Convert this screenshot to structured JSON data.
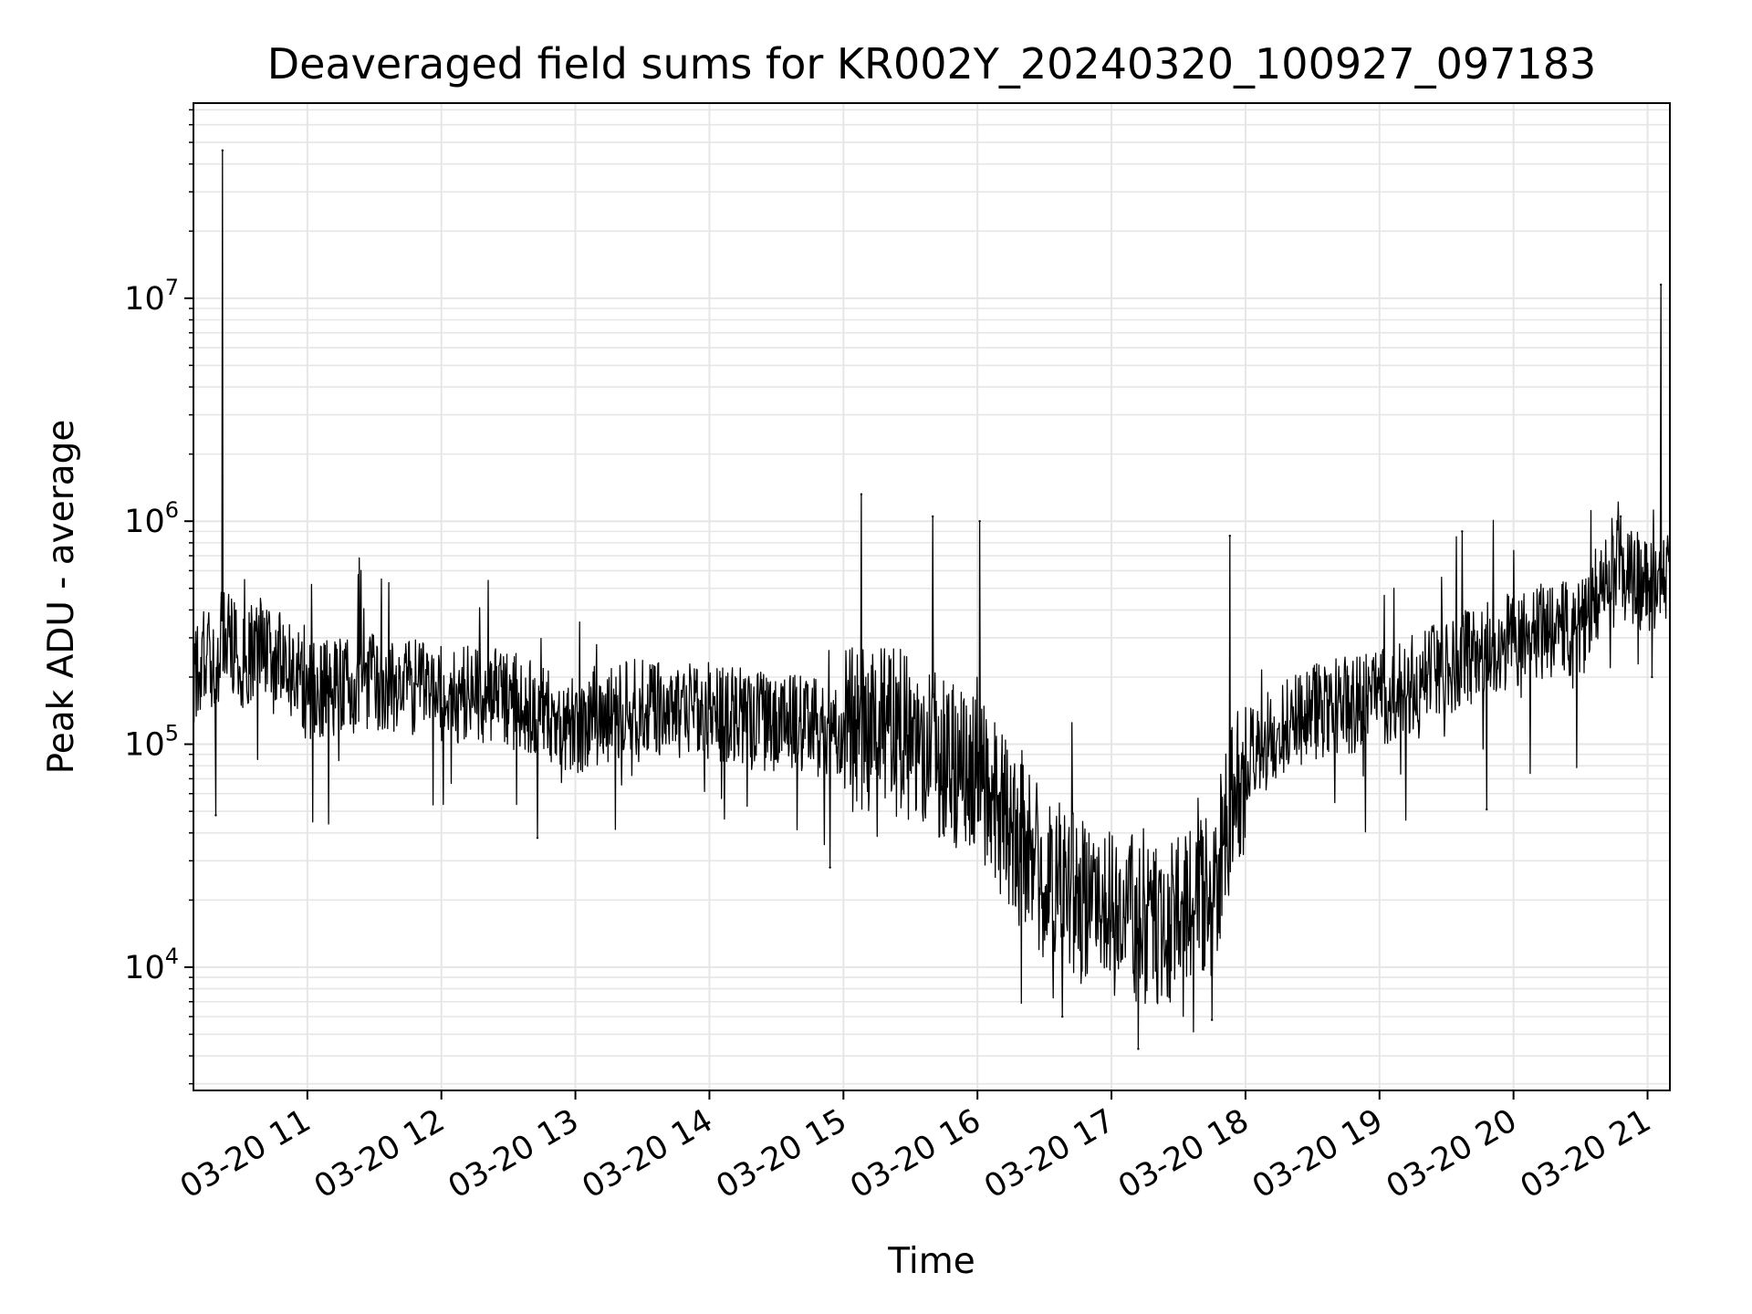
{
  "chart_data": {
    "type": "line",
    "title": "Deaveraged field sums for KR002Y_20240320_100927_097183",
    "xlabel": "Time",
    "ylabel": "Peak ADU - average",
    "x_scale": "time",
    "y_scale": "log",
    "xlim": [
      "2024-03-20 10:09",
      "2024-03-20 21:10"
    ],
    "ylim": [
      2800,
      75000000
    ],
    "x_ticks": [
      "03-20 11",
      "03-20 12",
      "03-20 13",
      "03-20 14",
      "03-20 15",
      "03-20 16",
      "03-20 17",
      "03-20 18",
      "03-20 19",
      "03-20 20",
      "03-20 21"
    ],
    "y_ticks": [
      {
        "base": "10",
        "exp": "4",
        "value": 10000
      },
      {
        "base": "10",
        "exp": "5",
        "value": 100000
      },
      {
        "base": "10",
        "exp": "6",
        "value": 1000000
      },
      {
        "base": "10",
        "exp": "7",
        "value": 10000000
      }
    ],
    "grid": true,
    "line_color": "#000000",
    "grid_color": "#e6e6e6",
    "series": [
      {
        "points": [
          [
            "2024-03-20 10:09",
            200000
          ],
          [
            "2024-03-20 10:15",
            260000
          ],
          [
            "2024-03-20 10:20",
            210000
          ],
          [
            "2024-03-20 10:22",
            46000000
          ],
          [
            "2024-03-20 10:24",
            300000
          ],
          [
            "2024-03-20 10:30",
            230000
          ],
          [
            "2024-03-20 10:40",
            290000
          ],
          [
            "2024-03-20 10:50",
            230000
          ],
          [
            "2024-03-20 11:00",
            170000
          ],
          [
            "2024-03-20 11:30",
            190000
          ],
          [
            "2024-03-20 12:00",
            170000
          ],
          [
            "2024-03-20 12:30",
            160000
          ],
          [
            "2024-03-20 13:00",
            120000
          ],
          [
            "2024-03-20 13:30",
            150000
          ],
          [
            "2024-03-20 14:00",
            140000
          ],
          [
            "2024-03-20 14:30",
            125000
          ],
          [
            "2024-03-20 15:00",
            120000
          ],
          [
            "2024-03-20 15:30",
            110000
          ],
          [
            "2024-03-20 16:00",
            70000
          ],
          [
            "2024-03-20 16:30",
            25000
          ],
          [
            "2024-03-20 17:00",
            17000
          ],
          [
            "2024-03-20 17:30",
            16000
          ],
          [
            "2024-03-20 17:45",
            22000
          ],
          [
            "2024-03-20 17:55",
            60000
          ],
          [
            "2024-03-20 18:00",
            90000
          ],
          [
            "2024-03-20 18:30",
            140000
          ],
          [
            "2024-03-20 19:00",
            160000
          ],
          [
            "2024-03-20 19:30",
            220000
          ],
          [
            "2024-03-20 20:00",
            300000
          ],
          [
            "2024-03-20 20:30",
            340000
          ],
          [
            "2024-03-20 20:45",
            650000
          ],
          [
            "2024-03-20 21:00",
            500000
          ],
          [
            "2024-03-20 21:06",
            11500000
          ],
          [
            "2024-03-20 21:10",
            600000
          ]
        ],
        "spikes": [
          [
            "2024-03-20 10:22",
            46000000
          ],
          [
            "2024-03-20 15:08",
            1320000
          ],
          [
            "2024-03-20 15:40",
            1050000
          ],
          [
            "2024-03-20 16:01",
            1000000
          ],
          [
            "2024-03-20 17:53",
            860000
          ],
          [
            "2024-03-20 19:37",
            900000
          ],
          [
            "2024-03-20 20:48",
            1050000
          ],
          [
            "2024-03-20 21:06",
            11500000
          ]
        ],
        "dips": [
          [
            "2024-03-20 10:19",
            48000
          ],
          [
            "2024-03-20 12:43",
            38000
          ],
          [
            "2024-03-20 14:54",
            28000
          ],
          [
            "2024-03-20 16:38",
            6000
          ],
          [
            "2024-03-20 17:12",
            4300
          ],
          [
            "2024-03-20 17:45",
            5800
          ],
          [
            "2024-03-20 19:48",
            51000
          ],
          [
            "2024-03-20 21:02",
            200000
          ]
        ]
      }
    ]
  }
}
